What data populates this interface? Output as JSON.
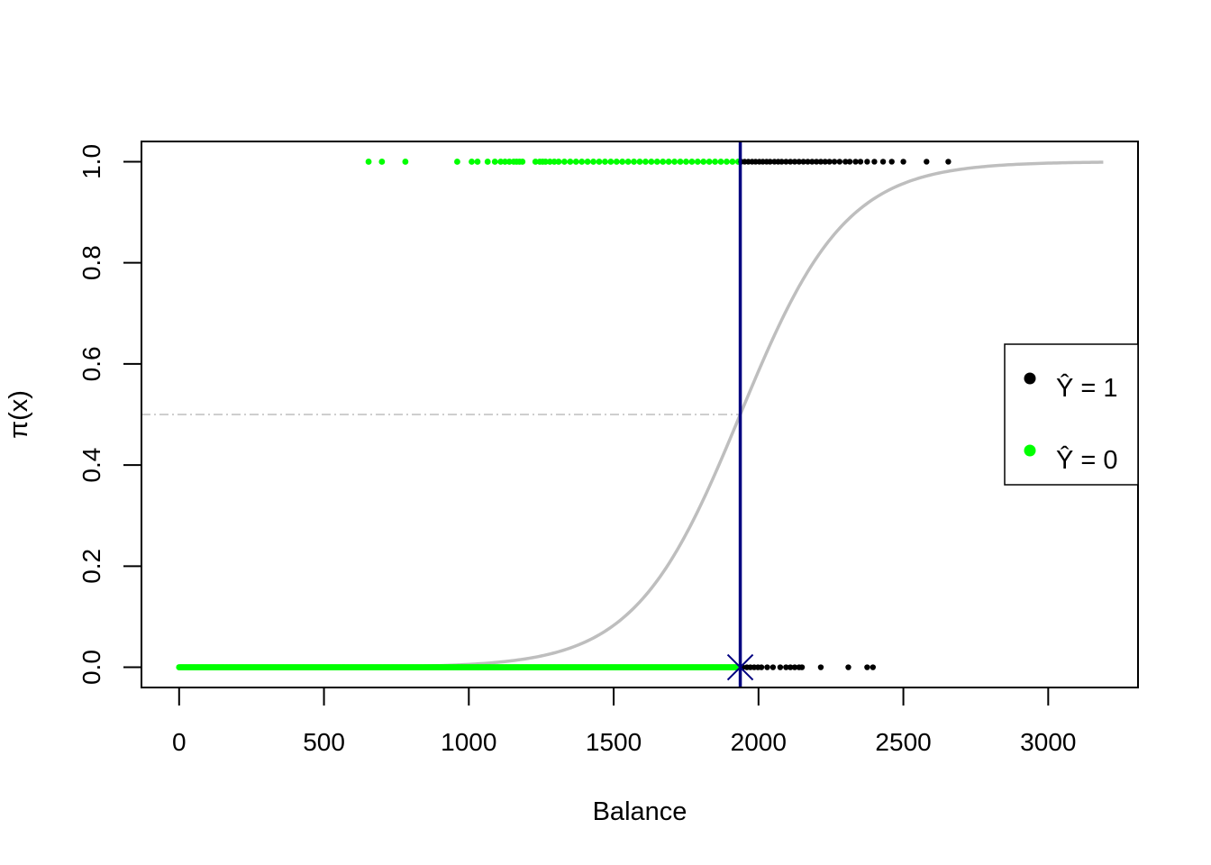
{
  "chart_data": {
    "type": "scatter",
    "title": "",
    "xlabel": "Balance",
    "ylabel": "π(x)",
    "xlim": [
      -130,
      3310
    ],
    "ylim": [
      -0.04,
      1.04
    ],
    "x_ticks": [
      0,
      500,
      1000,
      1500,
      2000,
      2500,
      3000
    ],
    "y_ticks": [
      0.0,
      0.2,
      0.4,
      0.6,
      0.8,
      1.0
    ],
    "x_tick_labels": [
      "0",
      "500",
      "1000",
      "1500",
      "2000",
      "2500",
      "3000"
    ],
    "y_tick_labels": [
      "0.0",
      "0.2",
      "0.4",
      "0.6",
      "0.8",
      "1.0"
    ],
    "grid": false,
    "logistic_curve": {
      "color": "#bebebe",
      "intercept": -10.6513,
      "slope": 0.005499,
      "x_range": [
        0,
        3190
      ]
    },
    "threshold_line": {
      "type": "vertical",
      "x": 1937,
      "color": "#000080"
    },
    "threshold_marker": {
      "x": 1937,
      "y": 0,
      "symbol": "x",
      "color": "#000080"
    },
    "reference_line": {
      "type": "horizontal",
      "y": 0.5,
      "style": "dotdash",
      "color": "#bebebe",
      "x_end": 1937
    },
    "series": [
      {
        "name": "Ŷ = 1",
        "color": "#000000",
        "points_y1": [
          1940,
          1952,
          1965,
          1978,
          1990,
          2003,
          2015,
          2028,
          2040,
          2055,
          2068,
          2080,
          2095,
          2110,
          2125,
          2140,
          2155,
          2170,
          2185,
          2200,
          2215,
          2230,
          2245,
          2262,
          2280,
          2300,
          2315,
          2335,
          2352,
          2375,
          2400,
          2430,
          2460,
          2500,
          2580,
          2655
        ],
        "points_y0": [
          1945,
          1960,
          1972,
          1985,
          1998,
          2010,
          2030,
          2050,
          2075,
          2095,
          2110,
          2125,
          2140,
          2150,
          2215,
          2310,
          2375,
          2395
        ]
      },
      {
        "name": "Ŷ = 0",
        "color": "#00ff00",
        "points_y1": [
          654,
          700,
          781,
          960,
          1010,
          1030,
          1065,
          1090,
          1110,
          1125,
          1140,
          1155,
          1165,
          1175,
          1185,
          1230,
          1245,
          1255,
          1265,
          1280,
          1295,
          1310,
          1330,
          1350,
          1370,
          1390,
          1410,
          1430,
          1450,
          1470,
          1490,
          1510,
          1530,
          1550,
          1570,
          1590,
          1610,
          1630,
          1650,
          1670,
          1690,
          1710,
          1730,
          1750,
          1770,
          1790,
          1810,
          1830,
          1850,
          1870,
          1890,
          1910,
          1930
        ],
        "points_y0_range": [
          0,
          1935
        ]
      }
    ],
    "legend": {
      "position": "right",
      "entries": [
        "Ŷ = 1",
        "Ŷ = 0"
      ]
    }
  }
}
